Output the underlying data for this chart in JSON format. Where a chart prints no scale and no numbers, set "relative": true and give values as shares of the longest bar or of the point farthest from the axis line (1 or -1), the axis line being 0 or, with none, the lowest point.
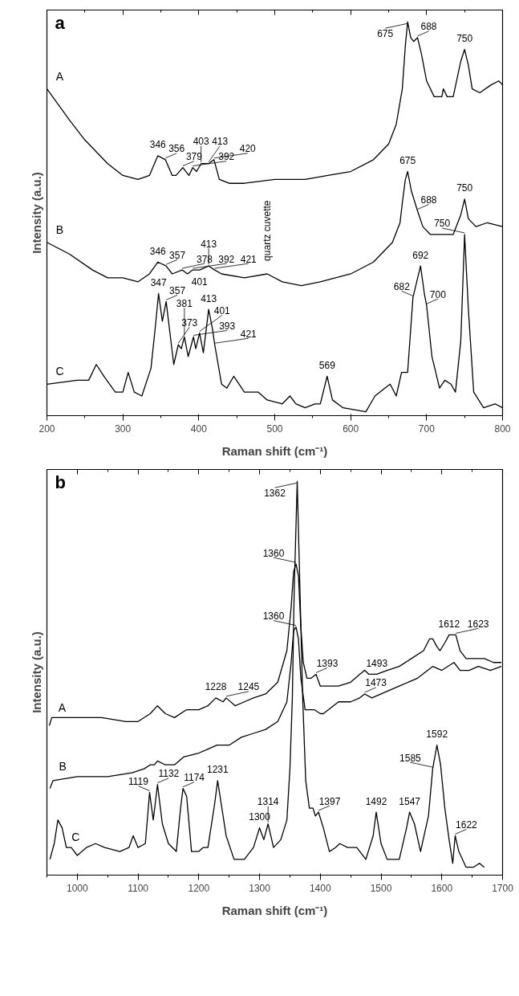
{
  "chart_data": [
    {
      "type": "line",
      "title": "a",
      "xlabel": "Raman shift (cm⁻¹)",
      "ylabel": "Intensity (a.u.)",
      "relative": true,
      "xlim": [
        200,
        800
      ],
      "xticks": [
        200,
        300,
        400,
        500,
        600,
        700,
        800
      ],
      "line_style": "solid",
      "marker": "none",
      "series": [
        {
          "name": "A",
          "color": "#000000",
          "x": [
            200,
            230,
            250,
            280,
            300,
            320,
            335,
            346,
            356,
            365,
            370,
            379,
            387,
            392,
            397,
            403,
            413,
            420,
            427,
            440,
            460,
            500,
            540,
            570,
            600,
            630,
            650,
            660,
            668,
            672,
            675,
            679,
            683,
            688,
            693,
            700,
            710,
            720,
            722,
            727,
            735,
            745,
            750,
            755,
            760,
            770,
            785,
            795,
            800
          ],
          "values": [
            0.83,
            0.75,
            0.7,
            0.64,
            0.61,
            0.6,
            0.61,
            0.66,
            0.65,
            0.61,
            0.61,
            0.63,
            0.61,
            0.63,
            0.62,
            0.64,
            0.64,
            0.65,
            0.6,
            0.59,
            0.59,
            0.6,
            0.6,
            0.61,
            0.62,
            0.65,
            0.69,
            0.74,
            0.83,
            0.94,
            1,
            0.96,
            0.95,
            0.96,
            0.92,
            0.85,
            0.81,
            0.81,
            0.83,
            0.81,
            0.81,
            0.9,
            0.93,
            0.89,
            0.83,
            0.82,
            0.84,
            0.85,
            0.84
          ]
        },
        {
          "name": "B",
          "color": "#000000",
          "x": [
            200,
            230,
            260,
            280,
            300,
            320,
            335,
            346,
            357,
            365,
            378,
            385,
            392,
            401,
            413,
            421,
            430,
            460,
            490,
            510,
            535,
            560,
            600,
            630,
            655,
            665,
            668,
            672,
            675,
            680,
            688,
            695,
            705,
            720,
            735,
            745,
            750,
            755,
            765,
            780,
            800
          ],
          "values": [
            0.44,
            0.41,
            0.37,
            0.35,
            0.35,
            0.34,
            0.36,
            0.39,
            0.38,
            0.36,
            0.37,
            0.36,
            0.37,
            0.37,
            0.38,
            0.37,
            0.36,
            0.35,
            0.36,
            0.34,
            0.33,
            0.34,
            0.36,
            0.39,
            0.44,
            0.49,
            0.54,
            0.6,
            0.62,
            0.57,
            0.52,
            0.48,
            0.46,
            0.46,
            0.46,
            0.51,
            0.55,
            0.5,
            0.48,
            0.49,
            0.48
          ]
        },
        {
          "name": "C",
          "color": "#000000",
          "x": [
            200,
            240,
            255,
            265,
            275,
            290,
            300,
            307,
            315,
            325,
            337,
            343,
            347,
            352,
            357,
            362,
            367,
            373,
            377,
            381,
            386,
            393,
            396,
            401,
            406,
            413,
            418,
            421,
            430,
            437,
            446,
            460,
            478,
            490,
            510,
            520,
            528,
            540,
            553,
            560,
            569,
            576,
            590,
            620,
            632,
            645,
            652,
            660,
            667,
            675,
            682,
            692,
            697,
            700,
            707,
            717,
            724,
            732,
            738,
            745,
            750,
            755,
            762,
            775,
            790,
            800
          ],
          "values": [
            0.08,
            0.09,
            0.09,
            0.13,
            0.1,
            0.06,
            0.06,
            0.11,
            0.06,
            0.05,
            0.12,
            0.23,
            0.31,
            0.24,
            0.29,
            0.21,
            0.13,
            0.18,
            0.17,
            0.2,
            0.15,
            0.2,
            0.17,
            0.21,
            0.16,
            0.27,
            0.22,
            0.18,
            0.08,
            0.07,
            0.1,
            0.06,
            0.06,
            0.04,
            0.03,
            0.05,
            0.03,
            0.02,
            0.03,
            0.03,
            0.1,
            0.04,
            0.02,
            0.01,
            0.05,
            0.07,
            0.08,
            0.05,
            0.11,
            0.11,
            0.3,
            0.38,
            0.31,
            0.28,
            0.15,
            0.07,
            0.09,
            0.08,
            0.06,
            0.19,
            0.46,
            0.27,
            0.06,
            0.02,
            0.03,
            0.02
          ]
        }
      ],
      "annotations": [
        {
          "text": "346",
          "x": 346,
          "y": 0.66
        },
        {
          "text": "356",
          "x": 356,
          "y": 0.65
        },
        {
          "text": "379",
          "x": 379,
          "y": 0.63
        },
        {
          "text": "392",
          "x": 392,
          "y": 0.63
        },
        {
          "text": "403",
          "x": 403,
          "y": 0.64
        },
        {
          "text": "413",
          "x": 413,
          "y": 0.64
        },
        {
          "text": "420",
          "x": 420,
          "y": 0.65
        },
        {
          "text": "675",
          "x": 675,
          "y": 1
        },
        {
          "text": "688",
          "x": 688,
          "y": 0.96
        },
        {
          "text": "750",
          "x": 750,
          "y": 0.93
        },
        {
          "text": "675",
          "x": 675,
          "y": 0.62
        },
        {
          "text": "688",
          "x": 688,
          "y": 0.52
        },
        {
          "text": "750",
          "x": 750,
          "y": 0.55
        },
        {
          "text": "346",
          "x": 346,
          "y": 0.39
        },
        {
          "text": "357",
          "x": 357,
          "y": 0.38
        },
        {
          "text": "378",
          "x": 378,
          "y": 0.37
        },
        {
          "text": "392",
          "x": 392,
          "y": 0.37
        },
        {
          "text": "401",
          "x": 401,
          "y": 0.37
        },
        {
          "text": "413",
          "x": 413,
          "y": 0.38
        },
        {
          "text": "421",
          "x": 421,
          "y": 0.37
        },
        {
          "text": "quartz cuvette",
          "x": 490,
          "y": 0.36
        },
        {
          "text": "347",
          "x": 347,
          "y": 0.31
        },
        {
          "text": "357",
          "x": 357,
          "y": 0.29
        },
        {
          "text": "393",
          "x": 393,
          "y": 0.2
        },
        {
          "text": "401",
          "x": 401,
          "y": 0.21
        },
        {
          "text": "413",
          "x": 413,
          "y": 0.27
        },
        {
          "text": "421",
          "x": 421,
          "y": 0.18
        },
        {
          "text": "373",
          "x": 373,
          "y": 0.18
        },
        {
          "text": "381",
          "x": 381,
          "y": 0.2
        },
        {
          "text": "569",
          "x": 569,
          "y": 0.1
        },
        {
          "text": "682",
          "x": 682,
          "y": 0.3
        },
        {
          "text": "692",
          "x": 692,
          "y": 0.38
        },
        {
          "text": "700",
          "x": 700,
          "y": 0.28
        },
        {
          "text": "750",
          "x": 750,
          "y": 0.46
        }
      ]
    },
    {
      "type": "line",
      "title": "b",
      "xlabel": "Raman shift (cm⁻¹)",
      "ylabel": "Intensity (a.u.)",
      "relative": true,
      "xlim": [
        950,
        1700
      ],
      "xticks": [
        1000,
        1100,
        1200,
        1300,
        1400,
        1500,
        1600,
        1700
      ],
      "line_style": "solid",
      "marker": "none",
      "series": [
        {
          "name": "A",
          "color": "#000000",
          "x": [
            954,
            958,
            1000,
            1040,
            1080,
            1100,
            1120,
            1132,
            1145,
            1160,
            1180,
            1200,
            1215,
            1228,
            1240,
            1245,
            1260,
            1275,
            1290,
            1310,
            1330,
            1345,
            1352,
            1356,
            1360,
            1364,
            1368,
            1372,
            1378,
            1385,
            1393,
            1400,
            1410,
            1430,
            1450,
            1465,
            1473,
            1480,
            1493,
            1510,
            1530,
            1550,
            1570,
            1580,
            1585,
            1592,
            1597,
            1605,
            1612,
            1623,
            1630,
            1640,
            1660,
            1670,
            1685,
            1698
          ],
          "values": [
            0.38,
            0.4,
            0.4,
            0.4,
            0.39,
            0.39,
            0.41,
            0.43,
            0.41,
            0.4,
            0.42,
            0.42,
            0.43,
            0.45,
            0.44,
            0.45,
            0.43,
            0.44,
            0.45,
            0.46,
            0.49,
            0.57,
            0.68,
            0.77,
            0.79,
            0.76,
            0.63,
            0.54,
            0.5,
            0.5,
            0.51,
            0.48,
            0.48,
            0.48,
            0.49,
            0.51,
            0.52,
            0.51,
            0.51,
            0.52,
            0.53,
            0.55,
            0.57,
            0.6,
            0.6,
            0.58,
            0.57,
            0.59,
            0.61,
            0.61,
            0.57,
            0.55,
            0.55,
            0.55,
            0.54,
            0.54
          ]
        },
        {
          "name": "B",
          "color": "#000000",
          "x": [
            955,
            960,
            1000,
            1050,
            1090,
            1110,
            1120,
            1127,
            1132,
            1145,
            1160,
            1175,
            1200,
            1215,
            1230,
            1250,
            1270,
            1290,
            1310,
            1330,
            1345,
            1352,
            1356,
            1360,
            1364,
            1368,
            1375,
            1390,
            1400,
            1405,
            1430,
            1450,
            1465,
            1473,
            1485,
            1500,
            1530,
            1560,
            1585,
            1600,
            1620,
            1630,
            1645,
            1660,
            1680,
            1698
          ],
          "values": [
            0.22,
            0.24,
            0.25,
            0.25,
            0.26,
            0.27,
            0.28,
            0.28,
            0.29,
            0.28,
            0.28,
            0.3,
            0.31,
            0.32,
            0.33,
            0.33,
            0.35,
            0.36,
            0.37,
            0.39,
            0.44,
            0.54,
            0.62,
            0.63,
            0.6,
            0.5,
            0.42,
            0.42,
            0.41,
            0.41,
            0.44,
            0.44,
            0.45,
            0.46,
            0.45,
            0.46,
            0.48,
            0.5,
            0.53,
            0.52,
            0.54,
            0.52,
            0.52,
            0.53,
            0.52,
            0.53
          ]
        },
        {
          "name": "C",
          "color": "#000000",
          "x": [
            955,
            962,
            968,
            975,
            982,
            990,
            1000,
            1015,
            1030,
            1045,
            1070,
            1085,
            1092,
            1100,
            1112,
            1119,
            1125,
            1132,
            1140,
            1150,
            1163,
            1170,
            1174,
            1180,
            1188,
            1200,
            1207,
            1215,
            1226,
            1231,
            1237,
            1245,
            1258,
            1275,
            1290,
            1300,
            1307,
            1314,
            1323,
            1335,
            1345,
            1350,
            1354,
            1357,
            1362,
            1371,
            1376,
            1382,
            1388,
            1392,
            1397,
            1405,
            1415,
            1425,
            1432,
            1445,
            1460,
            1475,
            1487,
            1492,
            1500,
            1510,
            1530,
            1542,
            1547,
            1555,
            1565,
            1578,
            1585,
            1592,
            1598,
            1605,
            1612,
            1618,
            1622,
            1628,
            1640,
            1652,
            1662,
            1670
          ],
          "values": [
            0.04,
            0.08,
            0.14,
            0.12,
            0.07,
            0.07,
            0.05,
            0.07,
            0.08,
            0.07,
            0.06,
            0.07,
            0.1,
            0.07,
            0.08,
            0.21,
            0.14,
            0.23,
            0.13,
            0.08,
            0.06,
            0.17,
            0.22,
            0.2,
            0.06,
            0.06,
            0.07,
            0.07,
            0.18,
            0.24,
            0.18,
            0.1,
            0.04,
            0.04,
            0.07,
            0.12,
            0.09,
            0.13,
            0.07,
            0.09,
            0.14,
            0.27,
            0.45,
            0.72,
            1,
            0.45,
            0.24,
            0.17,
            0.17,
            0.15,
            0.16,
            0.12,
            0.06,
            0.07,
            0.08,
            0.07,
            0.07,
            0.04,
            0.1,
            0.16,
            0.08,
            0.04,
            0.04,
            0.12,
            0.16,
            0.13,
            0.06,
            0.15,
            0.27,
            0.33,
            0.28,
            0.17,
            0.09,
            0.03,
            0.1,
            0.06,
            0.02,
            0.02,
            0.03,
            0.02
          ]
        }
      ],
      "annotations": [
        {
          "text": "1362",
          "x": 1362,
          "y": 1
        },
        {
          "text": "1360",
          "x": 1360,
          "y": 0.79
        },
        {
          "text": "1360",
          "x": 1360,
          "y": 0.63
        },
        {
          "text": "1228",
          "x": 1228,
          "y": 0.45
        },
        {
          "text": "1245",
          "x": 1245,
          "y": 0.45
        },
        {
          "text": "1393",
          "x": 1393,
          "y": 0.51
        },
        {
          "text": "1473",
          "x": 1473,
          "y": 0.46
        },
        {
          "text": "1493",
          "x": 1493,
          "y": 0.51
        },
        {
          "text": "1612",
          "x": 1612,
          "y": 0.61
        },
        {
          "text": "1623",
          "x": 1623,
          "y": 0.61
        },
        {
          "text": "1585",
          "x": 1585,
          "y": 0.27
        },
        {
          "text": "1592",
          "x": 1592,
          "y": 0.33
        },
        {
          "text": "1119",
          "x": 1119,
          "y": 0.21
        },
        {
          "text": "1132",
          "x": 1132,
          "y": 0.23
        },
        {
          "text": "1174",
          "x": 1174,
          "y": 0.22
        },
        {
          "text": "1231",
          "x": 1231,
          "y": 0.24
        },
        {
          "text": "1300",
          "x": 1300,
          "y": 0.12
        },
        {
          "text": "1314",
          "x": 1314,
          "y": 0.13
        },
        {
          "text": "1397",
          "x": 1397,
          "y": 0.16
        },
        {
          "text": "1492",
          "x": 1492,
          "y": 0.16
        },
        {
          "text": "1547",
          "x": 1547,
          "y": 0.16
        },
        {
          "text": "1622",
          "x": 1622,
          "y": 0.1
        }
      ]
    }
  ]
}
